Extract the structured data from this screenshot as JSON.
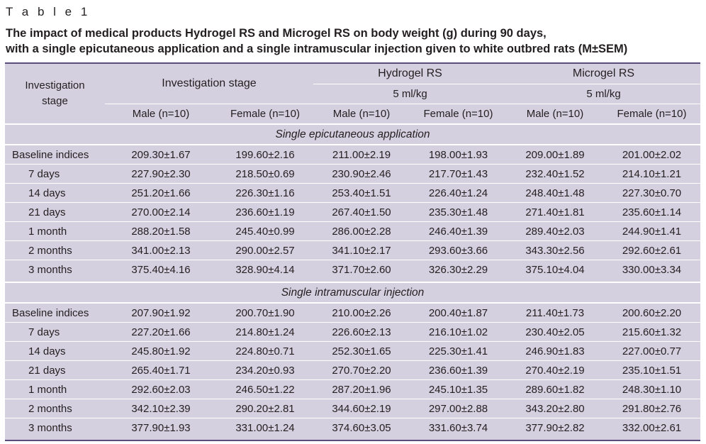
{
  "document": {
    "label": "T a b l e   1",
    "caption_line1": "The impact of medical products Hydrogel RS and Microgel RS on body weight (g) during 90 days,",
    "caption_line2": "with a single epicutaneous application and a single intramuscular injection given to white outbred rats (M±SEM)"
  },
  "table": {
    "header": {
      "stage_col": "Investigation stage",
      "group1": "Investigation stage",
      "group2": "Hydrogel RS",
      "group3": "Microgel RS",
      "dose2": "5 ml/kg",
      "dose3": "5 ml/kg",
      "sub": [
        "Male (n=10)",
        "Female (n=10)",
        "Male (n=10)",
        "Female (n=10)",
        "Male (n=10)",
        "Female (n=10)"
      ]
    },
    "sections": [
      {
        "title": "Single epicutaneous application",
        "rows": [
          {
            "stage": "Baseline indices",
            "values": [
              "209.30±1.67",
              "199.60±2.16",
              "211.00±2.19",
              "198.00±1.93",
              "209.00±1.89",
              "201.00±2.02"
            ]
          },
          {
            "stage": "7 days",
            "values": [
              "227.90±2.30",
              "218.50±0.69",
              "230.90±2.46",
              "217.70±1.43",
              "232.40±1.52",
              "214.10±1.21"
            ]
          },
          {
            "stage": "14 days",
            "values": [
              "251.20±1.66",
              "226.30±1.16",
              "253.40±1.51",
              "226.40±1.24",
              "248.40±1.48",
              "227.30±0.70"
            ]
          },
          {
            "stage": "21 days",
            "values": [
              "270.00±2.14",
              "236.60±1.19",
              "267.40±1.50",
              "235.30±1.48",
              "271.40±1.81",
              "235.60±1.14"
            ]
          },
          {
            "stage": "1 month",
            "values": [
              "288.20±1.58",
              "245.40±0.99",
              "286.00±2.28",
              "246.40±1.39",
              "289.40±2.03",
              "244.90±1.41"
            ]
          },
          {
            "stage": "2 months",
            "values": [
              "341.00±2.13",
              "290.00±2.57",
              "341.10±2.17",
              "293.60±3.66",
              "343.30±2.56",
              "292.60±2.61"
            ]
          },
          {
            "stage": "3 months",
            "values": [
              "375.40±4.16",
              "328.90±4.14",
              "371.70±2.60",
              "326.30±2.29",
              "375.10±4.04",
              "330.00±3.34"
            ]
          }
        ]
      },
      {
        "title": "Single intramuscular injection",
        "rows": [
          {
            "stage": "Baseline indices",
            "values": [
              "207.90±1.92",
              "200.70±1.90",
              "210.00±2.26",
              "200.40±1.87",
              "211.40±1.73",
              "200.60±2.20"
            ]
          },
          {
            "stage": "7 days",
            "values": [
              "227.20±1.66",
              "214.80±1.24",
              "226.60±2.13",
              "216.10±1.02",
              "230.40±2.05",
              "215.60±1.32"
            ]
          },
          {
            "stage": "14 days",
            "values": [
              "245.80±1.92",
              "224.80±0.71",
              "252.30±1.65",
              "225.30±1.41",
              "246.90±1.83",
              "227.00±0.77"
            ]
          },
          {
            "stage": "21 days",
            "values": [
              "265.40±1.71",
              "234.20±0.93",
              "270.70±2.20",
              "236.60±1.39",
              "270.40±2.19",
              "235.10±1.51"
            ]
          },
          {
            "stage": "1 month",
            "values": [
              "292.60±2.03",
              "246.50±1.22",
              "287.20±1.96",
              "245.10±1.35",
              "289.60±1.82",
              "248.30±1.10"
            ]
          },
          {
            "stage": "2 months",
            "values": [
              "342.10±2.39",
              "290.20±2.81",
              "344.60±2.19",
              "297.00±2.88",
              "343.20±2.80",
              "291.80±2.76"
            ]
          },
          {
            "stage": "3 months",
            "values": [
              "377.90±1.93",
              "331.00±1.24",
              "374.60±3.05",
              "331.60±3.74",
              "377.90±2.82",
              "332.00±2.61"
            ]
          }
        ]
      }
    ]
  }
}
